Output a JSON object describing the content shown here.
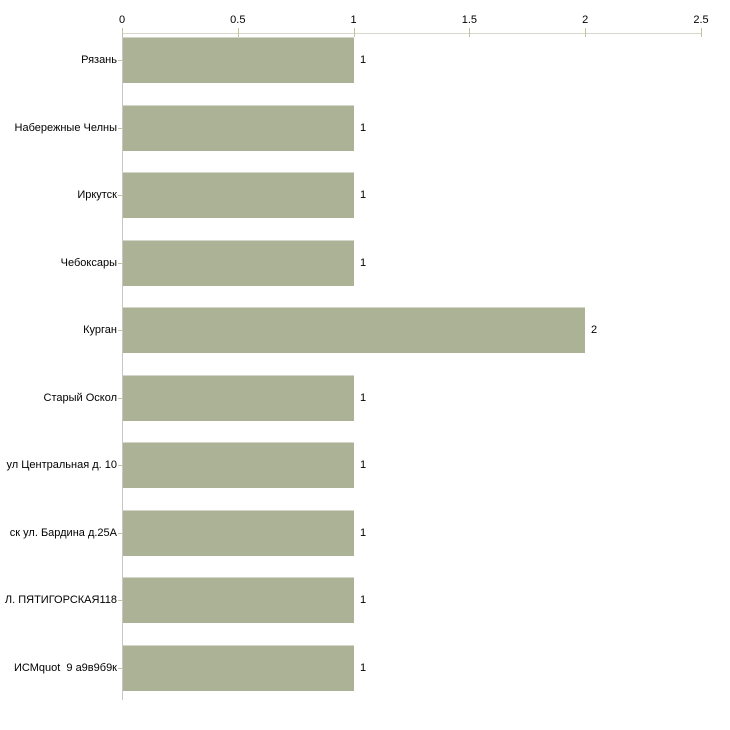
{
  "chart_data": {
    "type": "bar",
    "orientation": "horizontal",
    "title": "",
    "xlabel": "",
    "ylabel": "",
    "categories": [
      "Рязань",
      "Набережные Челны",
      "Иркутск",
      "Чебоксары",
      "Курган",
      "Старый Оскол",
      "ул Центральная д. 10",
      "ск ул. Бардина д.25А",
      "Л. ПЯТИГОРСКАЯ118",
      "ИСМquot  9 а9в9б9к"
    ],
    "values": [
      1,
      1,
      1,
      1,
      2,
      1,
      1,
      1,
      1,
      1
    ],
    "x_ticks": [
      "0",
      "0.5",
      "1",
      "1.5",
      "2",
      "2.5"
    ],
    "xlim": [
      0,
      2.5
    ],
    "grid": false,
    "legend": false,
    "axis_position": "top",
    "colors": {
      "bar": "#acb296",
      "axis_line": "#d7d8ca",
      "tick": "#c2c29e",
      "baseline": "#c6c6c6",
      "text": "#000000",
      "background": "#ffffff"
    }
  }
}
